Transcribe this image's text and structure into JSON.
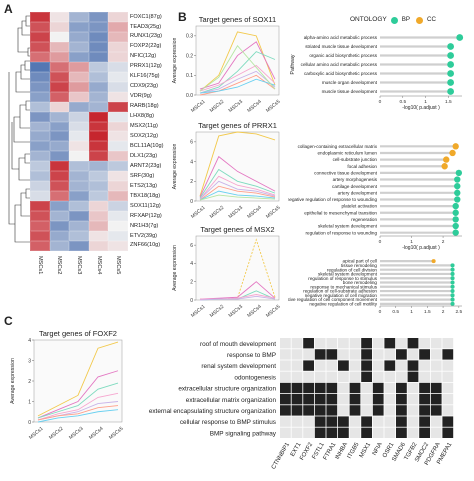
{
  "panels": {
    "A": "A",
    "B": "B",
    "C": "C"
  },
  "heatmap": {
    "samples": [
      "MSCs1",
      "MSCs2",
      "MSCs3",
      "MSCs4",
      "MSCs5"
    ],
    "genes": [
      "FOXC1(87g)",
      "TEAD3(25g)",
      "RUNX1(23g)",
      "FOXP2(22g)",
      "NFIC(12g)",
      "PRRX1(12g)",
      "KLF16(75g)",
      "CDX9(23g)",
      "VDR(9g)",
      "RARB(18g)",
      "LHX8(8g)",
      "MSX2(11g)",
      "SOX2(12g)",
      "BCL11A(10g)",
      "DLX1(23g)",
      "ARNT2(23g)",
      "SRF(30g)",
      "ETS2(13g)",
      "TBX18(18g)",
      "SOX11(12g)",
      "RFXAP(12g)",
      "NR1H3(7g)",
      "ETV2(39g)",
      "ZNF66(10g)"
    ],
    "colors": {
      "high": "#c6262e",
      "mid": "#f2f2f2",
      "low": "#3a62a8"
    },
    "values": [
      [
        1.3,
        0.1,
        -0.6,
        -0.9,
        0.2
      ],
      [
        1.1,
        0.2,
        -0.8,
        -0.9,
        0.5
      ],
      [
        1.2,
        0.0,
        -0.7,
        -1.0,
        0.4
      ],
      [
        1.1,
        0.4,
        -0.6,
        -1.0,
        0.2
      ],
      [
        0.9,
        0.6,
        -0.8,
        -1.0,
        0.2
      ],
      [
        -1.2,
        0.9,
        0.6,
        -0.4,
        -0.2
      ],
      [
        -1.0,
        1.1,
        0.4,
        -0.5,
        -0.1
      ],
      [
        -0.9,
        1.2,
        0.6,
        -0.7,
        -0.2
      ],
      [
        -0.8,
        1.0,
        0.3,
        -0.6,
        0.1
      ],
      [
        -0.5,
        0.2,
        -0.7,
        -0.6,
        1.2
      ],
      [
        -0.9,
        -0.6,
        -0.3,
        1.4,
        -0.1
      ],
      [
        -0.6,
        -0.8,
        -0.2,
        1.3,
        0.2
      ],
      [
        -0.7,
        -0.9,
        -0.1,
        1.4,
        0.1
      ],
      [
        -0.8,
        -0.7,
        0.1,
        1.3,
        -0.1
      ],
      [
        -0.6,
        -0.9,
        0.0,
        1.2,
        0.3
      ],
      [
        -0.4,
        1.3,
        -0.5,
        -0.6,
        -0.4
      ],
      [
        -0.5,
        1.2,
        -0.6,
        -0.4,
        0.1
      ],
      [
        -0.3,
        1.1,
        -0.6,
        -0.5,
        0.2
      ],
      [
        -0.2,
        0.9,
        -0.8,
        -0.4,
        0.4
      ],
      [
        1.2,
        -0.8,
        -0.5,
        0.2,
        -0.3
      ],
      [
        1.1,
        -0.6,
        -0.9,
        0.3,
        -0.1
      ],
      [
        1.0,
        -0.9,
        -0.6,
        0.4,
        0.0
      ],
      [
        1.1,
        -0.7,
        -0.5,
        0.1,
        -0.1
      ],
      [
        1.0,
        -0.6,
        -0.9,
        0.2,
        0.1
      ]
    ]
  },
  "line_charts": [
    {
      "title": "Target genes of SOX11",
      "ylabel": "Average expression",
      "xlabels": [
        "MSCs1",
        "MSCs2",
        "MSCs3",
        "MSCs4",
        "MSCs5"
      ],
      "yticks": [
        "0.0",
        "0.1",
        "0.2",
        "0.3"
      ],
      "ylim": [
        0,
        0.35
      ],
      "series": [
        [
          0.02,
          0.1,
          0.32,
          0.3,
          0.05
        ],
        [
          0.03,
          0.06,
          0.2,
          0.27,
          0.08
        ],
        [
          0.01,
          0.04,
          0.12,
          0.22,
          0.18
        ],
        [
          0.02,
          0.05,
          0.1,
          0.15,
          0.06
        ],
        [
          0.01,
          0.03,
          0.08,
          0.12,
          0.04
        ],
        [
          0.0,
          0.02,
          0.06,
          0.1,
          0.03
        ],
        [
          0.01,
          0.02,
          0.04,
          0.08,
          0.05
        ],
        [
          0.02,
          0.09,
          0.25,
          0.14,
          0.03
        ]
      ]
    },
    {
      "title": "Target genes of PRRX1",
      "ylabel": "Average expression",
      "xlabels": [
        "MSCs1",
        "MSCs2",
        "MSCs3",
        "MSCs4",
        "MSCs5"
      ],
      "yticks": [
        "0",
        "2",
        "4",
        "6"
      ],
      "ylim": [
        0,
        7
      ],
      "series": [
        [
          0.5,
          6.6,
          7.0,
          6.8,
          6.2
        ],
        [
          0.4,
          4.5,
          3.0,
          2.0,
          1.0
        ],
        [
          0.3,
          3.2,
          2.0,
          1.5,
          0.8
        ],
        [
          0.2,
          2.5,
          1.6,
          1.2,
          0.6
        ],
        [
          0.2,
          2.0,
          1.2,
          1.0,
          0.5
        ],
        [
          0.1,
          1.5,
          1.0,
          0.8,
          0.4
        ],
        [
          0.1,
          1.0,
          0.6,
          0.5,
          0.3
        ],
        [
          0.1,
          0.6,
          0.4,
          0.3,
          0.2
        ]
      ]
    },
    {
      "title": "Target genes of MSX2",
      "ylabel": "Average expression",
      "xlabels": [
        "MSCs1",
        "MSCs2",
        "MSCs3",
        "MSCs4",
        "MSCs5"
      ],
      "yticks": [
        "0",
        "2",
        "4",
        "6"
      ],
      "ylim": [
        0,
        7
      ],
      "series": [
        [
          0.1,
          0.1,
          0.2,
          6.6,
          0.3
        ],
        [
          0.1,
          0.2,
          0.3,
          2.0,
          0.2
        ],
        [
          0.0,
          0.1,
          0.1,
          1.0,
          0.1
        ],
        [
          0.1,
          0.1,
          0.2,
          0.6,
          0.2
        ],
        [
          0.0,
          0.1,
          0.1,
          0.4,
          0.1
        ]
      ]
    },
    {
      "title": "Target genes of FOXF2",
      "ylabel": "Average expression",
      "xlabels": [
        "MSCs1",
        "MSCs2",
        "MSCs3",
        "MSCs4",
        "MSCs5"
      ],
      "yticks": [
        "0",
        "1",
        "2",
        "3",
        "4"
      ],
      "ylim": [
        0,
        4
      ],
      "series": [
        [
          0.3,
          0.8,
          1.3,
          3.6,
          3.9
        ],
        [
          0.2,
          0.6,
          1.0,
          2.2,
          2.5
        ],
        [
          0.2,
          0.5,
          0.8,
          1.6,
          1.9
        ],
        [
          0.1,
          0.4,
          0.6,
          1.2,
          1.4
        ],
        [
          0.1,
          0.3,
          0.5,
          0.9,
          1.0
        ],
        [
          0.1,
          0.3,
          0.4,
          0.7,
          0.8
        ],
        [
          0.0,
          0.2,
          0.3,
          0.5,
          0.6
        ]
      ]
    }
  ],
  "series_colors": [
    "#f2c94c",
    "#e377c2",
    "#7fdbbf",
    "#f6a6cf",
    "#c9b3e8",
    "#ff9f8a",
    "#6ad0f0",
    "#b5e6a3"
  ],
  "ontology": {
    "legend_title": "ONTOLOGY",
    "bp_label": "BP",
    "cc_label": "CC",
    "bp_color": "#2ecc9a",
    "cc_color": "#f0a92a",
    "xlabel": "-log10( p.adjust )",
    "ylabel": "Pathway",
    "charts": [
      {
        "xticks": [
          "0",
          "0.5",
          "1",
          "1.5"
        ],
        "xmax": 1.8,
        "terms": [
          {
            "label": "alpha-amino acid metabolic process",
            "value": 1.75,
            "ont": "BP"
          },
          {
            "label": "striated muscle tissue development",
            "value": 1.55,
            "ont": "BP"
          },
          {
            "label": "organic acid biosynthetic process",
            "value": 1.55,
            "ont": "BP"
          },
          {
            "label": "cellular amino acid metabolic process",
            "value": 1.55,
            "ont": "BP"
          },
          {
            "label": "carboxylic acid biosynthetic process",
            "value": 1.55,
            "ont": "BP"
          },
          {
            "label": "muscle organ development",
            "value": 1.55,
            "ont": "BP"
          },
          {
            "label": "muscle tissue development",
            "value": 1.55,
            "ont": "BP"
          }
        ]
      },
      {
        "xticks": [
          "0",
          "1",
          "2"
        ],
        "xmax": 2.6,
        "terms": [
          {
            "label": "collagen-containing extracellular matrix",
            "value": 2.4,
            "ont": "CC"
          },
          {
            "label": "endoplasmic reticulum lumen",
            "value": 2.3,
            "ont": "CC"
          },
          {
            "label": "cell-substrate junction",
            "value": 2.1,
            "ont": "CC"
          },
          {
            "label": "focal adhesion",
            "value": 2.05,
            "ont": "CC"
          },
          {
            "label": "connective tissue development",
            "value": 2.5,
            "ont": "BP"
          },
          {
            "label": "artery morphogenesis",
            "value": 2.45,
            "ont": "BP"
          },
          {
            "label": "cartilage development",
            "value": 2.45,
            "ont": "BP"
          },
          {
            "label": "artery development",
            "value": 2.45,
            "ont": "BP"
          },
          {
            "label": "negative regulation of response to wounding",
            "value": 2.45,
            "ont": "BP"
          },
          {
            "label": "platelet activation",
            "value": 2.4,
            "ont": "BP"
          },
          {
            "label": "epithelial to mesenchymal transition",
            "value": 2.4,
            "ont": "BP"
          },
          {
            "label": "regeneration",
            "value": 2.4,
            "ont": "BP"
          },
          {
            "label": "skeletal system development",
            "value": 2.4,
            "ont": "BP"
          },
          {
            "label": "regulation of response to wounding",
            "value": 2.4,
            "ont": "BP"
          }
        ]
      },
      {
        "xticks": [
          "0",
          "0.5",
          "1",
          "1.5",
          "2",
          "2.5"
        ],
        "xmax": 2.6,
        "terms": [
          {
            "label": "apical part of cell",
            "value": 1.7,
            "ont": "CC"
          },
          {
            "label": "tissue remodeling",
            "value": 2.3,
            "ont": "BP"
          },
          {
            "label": "regulation of cell division",
            "value": 2.3,
            "ont": "BP"
          },
          {
            "label": "skeletal system development",
            "value": 2.3,
            "ont": "BP"
          },
          {
            "label": "regulation of response to stimulus",
            "value": 2.3,
            "ont": "BP"
          },
          {
            "label": "bone remodeling",
            "value": 2.3,
            "ont": "BP"
          },
          {
            "label": "response to mechanical stimulus",
            "value": 2.3,
            "ont": "BP"
          },
          {
            "label": "regulation of cell-substrate adhesion",
            "value": 2.3,
            "ont": "BP"
          },
          {
            "label": "negative regulation of cell migration",
            "value": 2.3,
            "ont": "BP"
          },
          {
            "label": "negative regulation of cell component movement",
            "value": 2.3,
            "ont": "BP"
          },
          {
            "label": "negative regulation of cell motility",
            "value": 2.3,
            "ont": "BP"
          }
        ]
      }
    ]
  },
  "binary_matrix": {
    "terms": [
      "roof of mouth development",
      "response to BMP",
      "renal system development",
      "odontogenesis",
      "extracellular structure organization",
      "extracellular matrix organization",
      "external encapsulating structure organization",
      "cellular response to BMP stimulus",
      "BMP signaling pathway"
    ],
    "genes": [
      "CTNNBIP1",
      "EXT1",
      "FOXF2",
      "FSTL1",
      "FTRA1",
      "INHBA",
      "ITGB5",
      "MSX1",
      "NFIA",
      "OSR1",
      "SMAD6",
      "TGFB2",
      "SMOC2",
      "PDGFRA",
      "PMEPA1"
    ],
    "fill_color": "#222222",
    "empty_color": "#e6e6e6",
    "cells": [
      [
        0,
        0,
        1,
        0,
        0,
        0,
        0,
        1,
        0,
        1,
        0,
        1,
        0,
        0,
        0
      ],
      [
        0,
        0,
        0,
        1,
        1,
        0,
        0,
        1,
        0,
        0,
        1,
        0,
        1,
        0,
        1
      ],
      [
        0,
        0,
        1,
        0,
        0,
        1,
        0,
        1,
        0,
        1,
        0,
        1,
        0,
        0,
        0
      ],
      [
        0,
        0,
        0,
        0,
        0,
        0,
        0,
        1,
        0,
        0,
        0,
        1,
        0,
        0,
        0
      ],
      [
        1,
        1,
        1,
        1,
        1,
        0,
        1,
        0,
        1,
        0,
        1,
        0,
        1,
        1,
        0
      ],
      [
        1,
        1,
        1,
        1,
        1,
        0,
        1,
        0,
        1,
        0,
        1,
        0,
        1,
        1,
        0
      ],
      [
        1,
        1,
        1,
        1,
        1,
        0,
        1,
        0,
        1,
        0,
        1,
        0,
        1,
        1,
        0
      ],
      [
        0,
        0,
        0,
        1,
        1,
        1,
        0,
        1,
        0,
        0,
        1,
        0,
        1,
        0,
        1
      ],
      [
        0,
        0,
        0,
        1,
        1,
        1,
        0,
        1,
        0,
        0,
        1,
        0,
        1,
        0,
        1
      ]
    ]
  }
}
